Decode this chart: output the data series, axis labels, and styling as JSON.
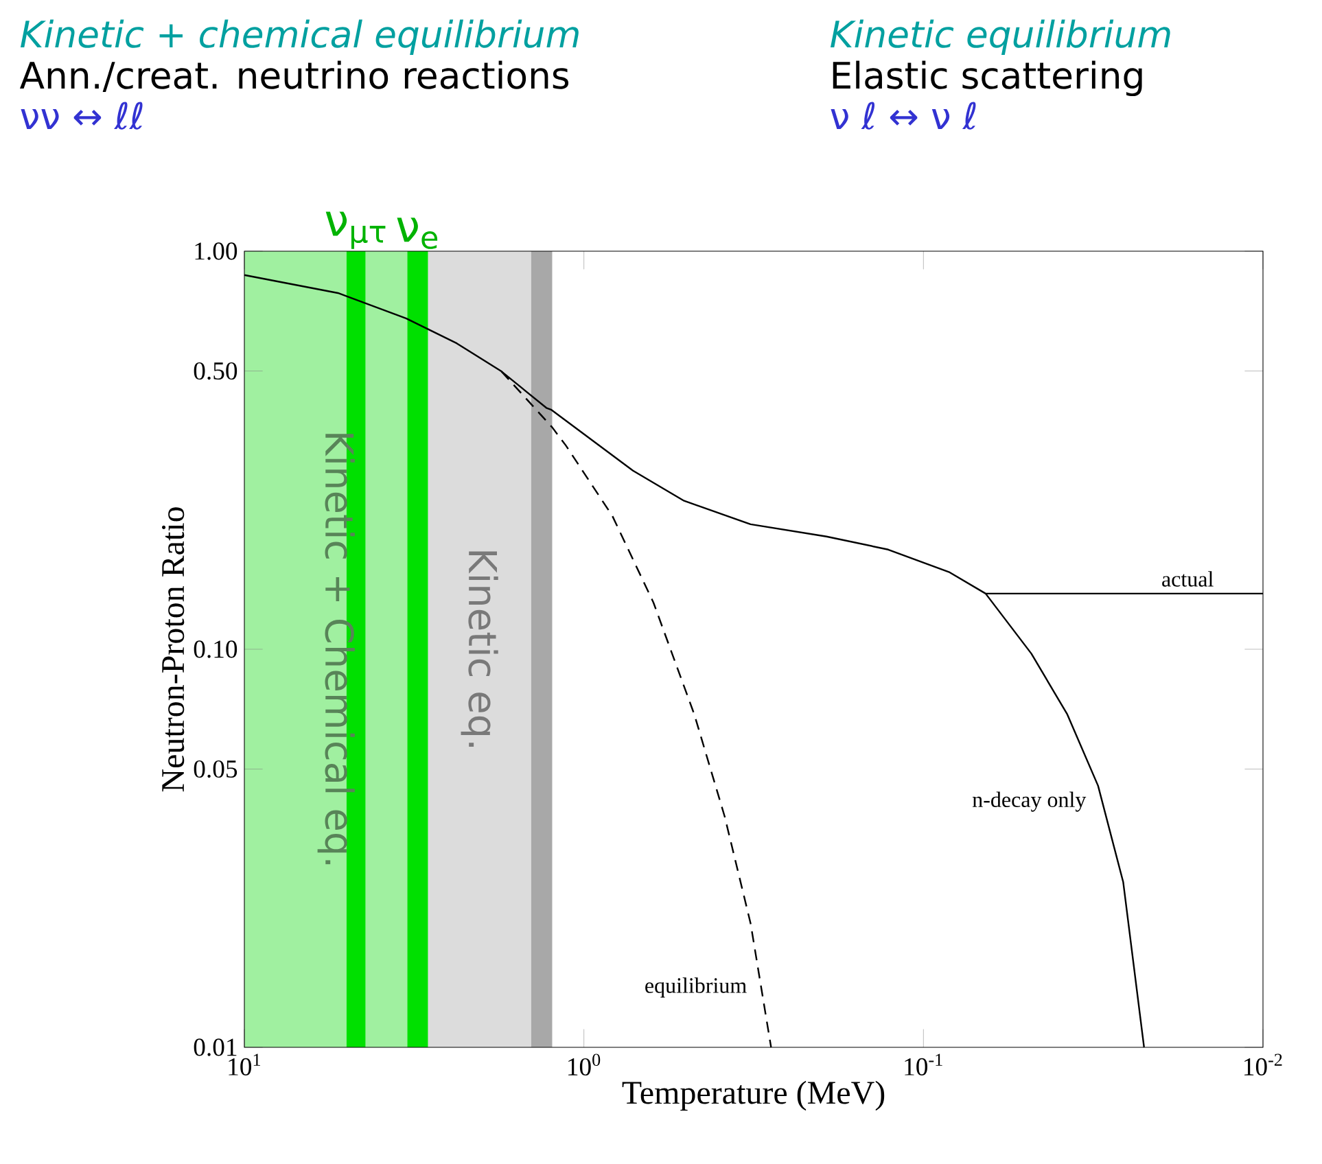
{
  "chart_data": {
    "type": "line",
    "xlabel": "Temperature (MeV)",
    "ylabel": "Neutron-Proton Ratio",
    "annotations": [
      "Kinetic + chemical equilibrium",
      "Ann./creat. neutrino reactions",
      "νν ↔ ℓℓ",
      "Kinetic equilibrium",
      "Elastic scattering",
      "ν ℓ ↔ ν ℓ"
    ],
    "log": "xy",
    "legend": false,
    "grid": false,
    "line_style": "solid",
    "xlim": [
      10,
      0.01
    ],
    "xticks": [
      {
        "value": 10,
        "label": "10$^{1}$"
      },
      {
        "value": 1,
        "label": "10$^{0}$"
      },
      {
        "value": 0.1,
        "label": "10$^{-1}$"
      },
      {
        "value": 0.01,
        "label": "10$^{-2}$"
      }
    ],
    "ylim": [
      0.01,
      1
    ],
    "yticks": [
      {
        "value": 0.01,
        "label": "0.01"
      },
      {
        "value": 0.05,
        "label": "0.05"
      },
      {
        "value": 0.1,
        "label": "0.10"
      },
      {
        "value": 0.5,
        "label": "0.50"
      },
      {
        "value": 1,
        "label": "1.00"
      }
    ],
    "bands": [
      {
        "axis": "x",
        "from": 10,
        "to": 2.88,
        "label": "Kinetic + Chemical eq.",
        "color": "#a0f0a0"
      },
      {
        "axis": "x",
        "from": 2.88,
        "to": 1.43,
        "label": "Kinetic eq.",
        "color": "#dcdcdc"
      },
      {
        "axis": "x",
        "from": 1.43,
        "to": 1.24,
        "color": "#a8a8a8"
      },
      {
        "axis": "x",
        "from": 5.0,
        "to": 4.4,
        "label": "ν$_{μτ}$",
        "color": "#00e000"
      },
      {
        "axis": "x",
        "from": 3.31,
        "to": 2.88,
        "label": "ν$_{e}$",
        "color": "#00e000"
      }
    ],
    "series": [
      {
        "name": "actual",
        "color": "#000000",
        "x": [
          10,
          5.3,
          3.34,
          2.37,
          1.75,
          1.29,
          1.25,
          0.717,
          0.507,
          0.323,
          0.193,
          0.127,
          0.0837,
          0.0656,
          0.01
        ],
        "values": [
          0.871,
          0.785,
          0.678,
          0.587,
          0.499,
          0.404,
          0.4,
          0.281,
          0.236,
          0.206,
          0.192,
          0.178,
          0.156,
          0.138,
          0.138
        ]
      },
      {
        "name": "equilibrium",
        "color": "#000000",
        "line_style": "dashed",
        "x": [
          1.75,
          1.24,
          1.13,
          0.824,
          0.624,
          0.473,
          0.385,
          0.323,
          0.281
        ],
        "values": [
          0.499,
          0.361,
          0.325,
          0.216,
          0.131,
          0.0686,
          0.038,
          0.0205,
          0.01
        ]
      },
      {
        "name": "n-decay only",
        "color": "#000000",
        "x": [
          0.0656,
          0.0481,
          0.0377,
          0.0306,
          0.0258,
          0.0224
        ],
        "values": [
          0.138,
          0.0975,
          0.0686,
          0.0454,
          0.026,
          0.01
        ]
      }
    ]
  }
}
